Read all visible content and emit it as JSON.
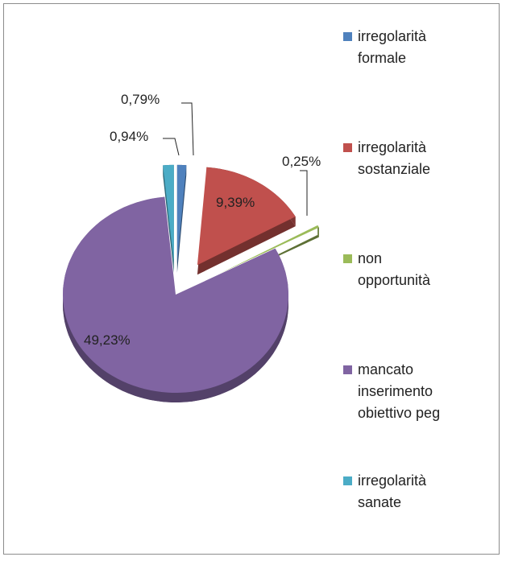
{
  "chart_data": {
    "type": "pie",
    "categories": [
      "irregolarità formale",
      "irregolarità sostanziale",
      "non opportunità",
      "mancato inserimento obiettivo peg",
      "irregolarità sanate"
    ],
    "values": [
      0.79,
      9.39,
      0.25,
      49.23,
      0.94
    ],
    "value_labels": [
      "0,79%",
      "9,39%",
      "0,25%",
      "49,23%",
      "0,94%"
    ],
    "colors": [
      "#4f81bd",
      "#c0504d",
      "#9bbb59",
      "#8064a2",
      "#4bacc6"
    ],
    "legend": "right"
  }
}
